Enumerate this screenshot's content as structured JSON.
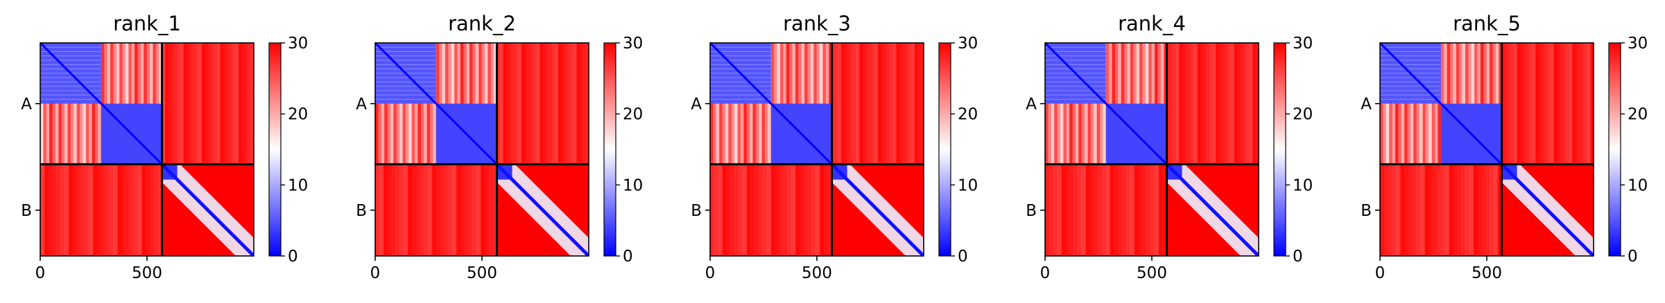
{
  "chart_data": [
    {
      "type": "heatmap",
      "title": "rank_1",
      "xlabel": "",
      "ylabel": "",
      "x_ticks": [
        "0",
        "500"
      ],
      "y_ticks": [
        "A",
        "B"
      ],
      "xlim": [
        0,
        1000
      ],
      "chain_boundary": 570,
      "colorbar": {
        "min": 0,
        "max": 30,
        "ticks": [
          "0",
          "10",
          "20",
          "30"
        ],
        "colors": [
          "#0000ff",
          "#ffffff",
          "#ff0000"
        ]
      }
    },
    {
      "type": "heatmap",
      "title": "rank_2",
      "xlabel": "",
      "ylabel": "",
      "x_ticks": [
        "0",
        "500"
      ],
      "y_ticks": [
        "A",
        "B"
      ],
      "xlim": [
        0,
        1000
      ],
      "chain_boundary": 570,
      "colorbar": {
        "min": 0,
        "max": 30,
        "ticks": [
          "0",
          "10",
          "20",
          "30"
        ],
        "colors": [
          "#0000ff",
          "#ffffff",
          "#ff0000"
        ]
      }
    },
    {
      "type": "heatmap",
      "title": "rank_3",
      "xlabel": "",
      "ylabel": "",
      "x_ticks": [
        "0",
        "500"
      ],
      "y_ticks": [
        "A",
        "B"
      ],
      "xlim": [
        0,
        1000
      ],
      "chain_boundary": 570,
      "colorbar": {
        "min": 0,
        "max": 30,
        "ticks": [
          "0",
          "10",
          "20",
          "30"
        ],
        "colors": [
          "#0000ff",
          "#ffffff",
          "#ff0000"
        ]
      }
    },
    {
      "type": "heatmap",
      "title": "rank_4",
      "xlabel": "",
      "ylabel": "",
      "x_ticks": [
        "0",
        "500"
      ],
      "y_ticks": [
        "A",
        "B"
      ],
      "xlim": [
        0,
        1000
      ],
      "chain_boundary": 570,
      "colorbar": {
        "min": 0,
        "max": 30,
        "ticks": [
          "0",
          "10",
          "20",
          "30"
        ],
        "colors": [
          "#0000ff",
          "#ffffff",
          "#ff0000"
        ]
      }
    },
    {
      "type": "heatmap",
      "title": "rank_5",
      "xlabel": "",
      "ylabel": "",
      "x_ticks": [
        "0",
        "500"
      ],
      "y_ticks": [
        "A",
        "B"
      ],
      "xlim": [
        0,
        1000
      ],
      "chain_boundary": 570,
      "colorbar": {
        "min": 0,
        "max": 30,
        "ticks": [
          "0",
          "10",
          "20",
          "30"
        ],
        "colors": [
          "#0000ff",
          "#ffffff",
          "#ff0000"
        ]
      }
    }
  ]
}
